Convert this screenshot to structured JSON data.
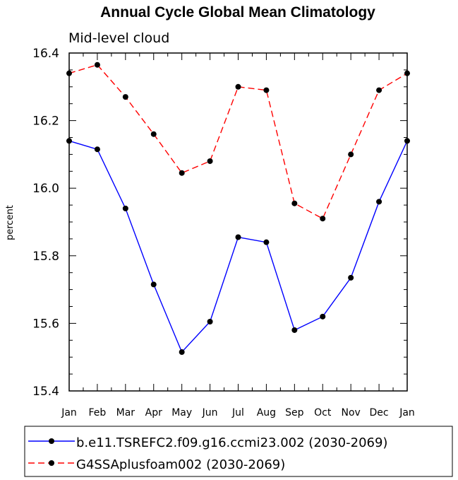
{
  "chart_data": {
    "type": "line",
    "title": "Annual Cycle Global Mean Climatology",
    "subtitle": "Mid-level cloud",
    "xlabel": "",
    "ylabel": "percent",
    "categories": [
      "Jan",
      "Feb",
      "Mar",
      "Apr",
      "May",
      "Jun",
      "Jul",
      "Aug",
      "Sep",
      "Oct",
      "Nov",
      "Dec",
      "Jan"
    ],
    "ylim": [
      15.4,
      16.4
    ],
    "yticks": [
      "15.4",
      "15.6",
      "15.8",
      "16.0",
      "16.2",
      "16.4"
    ],
    "grid": false,
    "legend_position": "bottom",
    "series": [
      {
        "name": "b.e11.TSREFC2.f09.g16.ccmi23.002 (2030-2069)",
        "color": "#0000ff",
        "line_style": "solid",
        "marker": "filled-circle",
        "values": [
          16.14,
          16.115,
          15.94,
          15.715,
          15.515,
          15.605,
          15.855,
          15.84,
          15.58,
          15.62,
          15.735,
          15.96,
          16.14
        ]
      },
      {
        "name": "G4SSAplusfoam002 (2030-2069)",
        "color": "#ff0000",
        "line_style": "dashed",
        "marker": "filled-circle",
        "values": [
          16.34,
          16.365,
          16.27,
          16.16,
          16.045,
          16.08,
          16.3,
          16.29,
          15.955,
          15.91,
          16.1,
          16.29,
          16.34
        ]
      }
    ]
  }
}
